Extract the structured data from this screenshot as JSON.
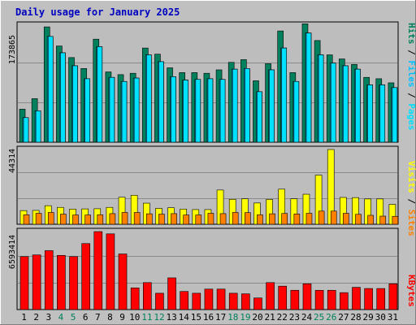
{
  "window": {
    "title": "Daily usage for January 2025"
  },
  "colors": {
    "frame_bg": "#c0c0c0",
    "plot_bg": "#bdbdbd",
    "grid": "#8a8a8a",
    "hits": "#00805c",
    "files": "#00c0ff",
    "pages": "#00e0ff",
    "visits": "#ffff00",
    "sites": "#ff8000",
    "kbytes": "#ff0000",
    "weekend_label": "#00805c",
    "title": "#0000c0"
  },
  "chart_data": [
    {
      "type": "bar",
      "title": "Daily usage for January 2025",
      "ylabel": "Pages / Files / Hits",
      "ylim": [
        0,
        173865
      ],
      "ytick": "173865",
      "grid": true,
      "categories": [
        "1",
        "2",
        "3",
        "4",
        "5",
        "6",
        "7",
        "8",
        "9",
        "10",
        "11",
        "12",
        "13",
        "14",
        "15",
        "16",
        "17",
        "18",
        "19",
        "20",
        "21",
        "22",
        "23",
        "24",
        "25",
        "26",
        "27",
        "28",
        "29",
        "30",
        "31"
      ],
      "weekend_days": [
        "4",
        "5",
        "11",
        "12",
        "18",
        "19",
        "25",
        "26"
      ],
      "series": [
        {
          "name": "Hits",
          "color": "#00805c",
          "values": [
            48400,
            63800,
            169000,
            141000,
            124000,
            108000,
            151000,
            103000,
            99000,
            101000,
            138000,
            129000,
            109000,
            102000,
            102000,
            101000,
            106000,
            117000,
            121000,
            90000,
            115000,
            163000,
            102000,
            173500,
            149000,
            128000,
            122000,
            114000,
            95000,
            93000,
            87000
          ]
        },
        {
          "name": "Files",
          "color": "#00c0ff",
          "values": [
            36000,
            46000,
            155000,
            131000,
            112000,
            93000,
            140000,
            95000,
            89000,
            94000,
            128000,
            118000,
            96000,
            91000,
            92000,
            93000,
            92000,
            107000,
            108000,
            74000,
            106000,
            138000,
            89000,
            160000,
            128000,
            116000,
            112000,
            107000,
            84000,
            84000,
            80000
          ]
        },
        {
          "name": "Pages",
          "color": "#00e0ff",
          "values": [
            36000,
            46000,
            155000,
            131000,
            112000,
            93000,
            140000,
            95000,
            89000,
            94000,
            128000,
            118000,
            96000,
            91000,
            92000,
            93000,
            92000,
            107000,
            108000,
            74000,
            106000,
            138000,
            89000,
            160000,
            128000,
            116000,
            112000,
            107000,
            84000,
            84000,
            80000
          ]
        }
      ]
    },
    {
      "type": "bar",
      "ylabel": "Sites / Visits",
      "ylim": [
        0,
        44314
      ],
      "ytick": "44314",
      "grid": true,
      "categories": [
        "1",
        "2",
        "3",
        "4",
        "5",
        "6",
        "7",
        "8",
        "9",
        "10",
        "11",
        "12",
        "13",
        "14",
        "15",
        "16",
        "17",
        "18",
        "19",
        "20",
        "21",
        "22",
        "23",
        "24",
        "25",
        "26",
        "27",
        "28",
        "29",
        "30",
        "31"
      ],
      "series": [
        {
          "name": "Visits",
          "color": "#ffff00",
          "values": [
            8100,
            8200,
            11000,
            10000,
            9000,
            9100,
            9200,
            10000,
            16000,
            17200,
            12500,
            9400,
            9800,
            9000,
            8700,
            8700,
            20300,
            14800,
            15100,
            12600,
            14700,
            20800,
            15100,
            17800,
            29100,
            44300,
            15900,
            15800,
            15000,
            15000,
            11800
          ]
        },
        {
          "name": "Sites",
          "color": "#ff8000",
          "values": [
            5600,
            6500,
            7000,
            6000,
            5500,
            5500,
            5600,
            6300,
            7000,
            7000,
            6200,
            6000,
            6300,
            5500,
            5500,
            6500,
            6300,
            7000,
            6900,
            5600,
            6200,
            6400,
            6100,
            6500,
            7800,
            7800,
            6500,
            5900,
            5300,
            4800,
            4700
          ]
        }
      ]
    },
    {
      "type": "bar",
      "ylabel": "KBytes",
      "ylim": [
        0,
        6593414
      ],
      "ytick": "6593414",
      "grid": true,
      "categories": [
        "1",
        "2",
        "3",
        "4",
        "5",
        "6",
        "7",
        "8",
        "9",
        "10",
        "11",
        "12",
        "13",
        "14",
        "15",
        "16",
        "17",
        "18",
        "19",
        "20",
        "21",
        "22",
        "23",
        "24",
        "25",
        "26",
        "27",
        "28",
        "29",
        "30",
        "31"
      ],
      "series": [
        {
          "name": "KBytes",
          "color": "#ff0000",
          "values": [
            4480000,
            4620000,
            4980000,
            4580000,
            4480000,
            5580000,
            6590000,
            6400000,
            4700000,
            1830000,
            2280000,
            1380000,
            2680000,
            1530000,
            1380000,
            1730000,
            1730000,
            1380000,
            1330000,
            980000,
            2280000,
            1980000,
            1630000,
            2180000,
            1630000,
            1630000,
            1430000,
            1880000,
            1780000,
            1780000,
            2180000
          ]
        }
      ]
    }
  ]
}
